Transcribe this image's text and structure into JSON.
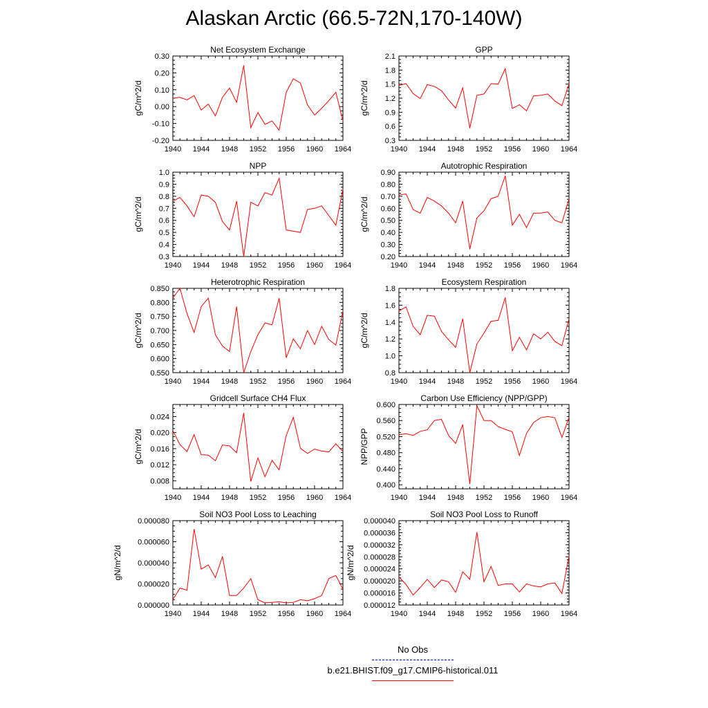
{
  "title": "Alaskan Arctic (66.5-72N,170-140W)",
  "legend": {
    "obs_label": "No Obs",
    "obs_color": "#0000ff",
    "model_label": "b.e21.BHIST.f09_g17.CMIP6-historical.011",
    "model_color": "#ff0000"
  },
  "chart_data": [
    {
      "type": "line",
      "title": "Net Ecosystem Exchange",
      "ylabel": "gC/m^2/d",
      "xlim": [
        1940,
        1964
      ],
      "ylim": [
        -0.2,
        0.3
      ],
      "xticks": [
        "1940",
        "1944",
        "1948",
        "1952",
        "1956",
        "1960",
        "1964"
      ],
      "yticks": [
        "-0.20",
        "-0.10",
        "0.00",
        "0.10",
        "0.20",
        "0.30"
      ],
      "x": [
        1940,
        1941,
        1942,
        1943,
        1944,
        1945,
        1946,
        1947,
        1948,
        1949,
        1950,
        1951,
        1952,
        1953,
        1954,
        1955,
        1956,
        1957,
        1958,
        1959,
        1960,
        1961,
        1962,
        1963,
        1964
      ],
      "series": [
        {
          "values": [
            0.05,
            0.055,
            0.04,
            0.065,
            -0.02,
            0.015,
            -0.055,
            0.055,
            0.11,
            0.025,
            0.245,
            -0.125,
            -0.035,
            -0.105,
            -0.085,
            -0.14,
            0.085,
            0.165,
            0.14,
            0.01,
            -0.05,
            -0.01,
            0.035,
            0.085,
            -0.085
          ]
        }
      ]
    },
    {
      "type": "line",
      "title": "GPP",
      "ylabel": "gC/m^2/d",
      "xlim": [
        1940,
        1964
      ],
      "ylim": [
        0.3,
        2.1
      ],
      "xticks": [
        "1940",
        "1944",
        "1948",
        "1952",
        "1956",
        "1960",
        "1964"
      ],
      "yticks": [
        "0.3",
        "0.6",
        "0.9",
        "1.2",
        "1.5",
        "1.8",
        "2.1"
      ],
      "x": [
        1940,
        1941,
        1942,
        1943,
        1944,
        1945,
        1946,
        1947,
        1948,
        1949,
        1950,
        1951,
        1952,
        1953,
        1954,
        1955,
        1956,
        1957,
        1958,
        1959,
        1960,
        1961,
        1962,
        1963,
        1964
      ],
      "series": [
        {
          "values": [
            1.47,
            1.51,
            1.3,
            1.19,
            1.49,
            1.45,
            1.36,
            1.16,
            0.99,
            1.42,
            0.56,
            1.26,
            1.29,
            1.51,
            1.5,
            1.83,
            0.98,
            1.06,
            0.93,
            1.25,
            1.26,
            1.29,
            1.14,
            1.04,
            1.51
          ]
        }
      ]
    },
    {
      "type": "line",
      "title": "NPP",
      "ylabel": "gC/m^2/d",
      "xlim": [
        1940,
        1964
      ],
      "ylim": [
        0.3,
        1.0
      ],
      "xticks": [
        "1940",
        "1944",
        "1948",
        "1952",
        "1956",
        "1960",
        "1964"
      ],
      "yticks": [
        "0.3",
        "0.4",
        "0.5",
        "0.6",
        "0.7",
        "0.8",
        "0.9",
        "1.0"
      ],
      "x": [
        1940,
        1941,
        1942,
        1943,
        1944,
        1945,
        1946,
        1947,
        1948,
        1949,
        1950,
        1951,
        1952,
        1953,
        1954,
        1955,
        1956,
        1957,
        1958,
        1959,
        1960,
        1961,
        1962,
        1963,
        1964
      ],
      "series": [
        {
          "values": [
            0.76,
            0.79,
            0.72,
            0.63,
            0.81,
            0.8,
            0.75,
            0.59,
            0.52,
            0.76,
            0.3,
            0.75,
            0.72,
            0.83,
            0.81,
            0.95,
            0.52,
            0.51,
            0.5,
            0.69,
            0.7,
            0.72,
            0.64,
            0.56,
            0.86
          ]
        }
      ]
    },
    {
      "type": "line",
      "title": "Autotrophic Respiration",
      "ylabel": "gC/m^2/d",
      "xlim": [
        1940,
        1964
      ],
      "ylim": [
        0.2,
        0.9
      ],
      "xticks": [
        "1940",
        "1944",
        "1948",
        "1952",
        "1956",
        "1960",
        "1964"
      ],
      "yticks": [
        "0.20",
        "0.30",
        "0.40",
        "0.50",
        "0.60",
        "0.70",
        "0.80",
        "0.90"
      ],
      "x": [
        1940,
        1941,
        1942,
        1943,
        1944,
        1945,
        1946,
        1947,
        1948,
        1949,
        1950,
        1951,
        1952,
        1953,
        1954,
        1955,
        1956,
        1957,
        1958,
        1959,
        1960,
        1961,
        1962,
        1963,
        1964
      ],
      "series": [
        {
          "values": [
            0.71,
            0.72,
            0.59,
            0.56,
            0.69,
            0.66,
            0.62,
            0.56,
            0.48,
            0.66,
            0.26,
            0.52,
            0.58,
            0.68,
            0.7,
            0.87,
            0.46,
            0.55,
            0.44,
            0.56,
            0.56,
            0.57,
            0.5,
            0.48,
            0.68
          ]
        }
      ]
    },
    {
      "type": "line",
      "title": "Heterotrophic Respiration",
      "ylabel": "gC/m^2/d",
      "xlim": [
        1940,
        1964
      ],
      "ylim": [
        0.55,
        0.85
      ],
      "xticks": [
        "1940",
        "1944",
        "1948",
        "1952",
        "1956",
        "1960",
        "1964"
      ],
      "yticks": [
        "0.550",
        "0.600",
        "0.650",
        "0.700",
        "0.750",
        "0.800",
        "0.850"
      ],
      "x": [
        1940,
        1941,
        1942,
        1943,
        1944,
        1945,
        1946,
        1947,
        1948,
        1949,
        1950,
        1951,
        1952,
        1953,
        1954,
        1955,
        1956,
        1957,
        1958,
        1959,
        1960,
        1961,
        1962,
        1963,
        1964
      ],
      "series": [
        {
          "values": [
            0.815,
            0.85,
            0.76,
            0.693,
            0.785,
            0.815,
            0.685,
            0.645,
            0.625,
            0.785,
            0.55,
            0.625,
            0.685,
            0.727,
            0.72,
            0.815,
            0.603,
            0.67,
            0.635,
            0.7,
            0.65,
            0.715,
            0.668,
            0.648,
            0.77
          ]
        }
      ]
    },
    {
      "type": "line",
      "title": "Ecosystem Respiration",
      "ylabel": "gC/m^2/d",
      "xlim": [
        1940,
        1964
      ],
      "ylim": [
        0.8,
        1.8
      ],
      "xticks": [
        "1940",
        "1944",
        "1948",
        "1952",
        "1956",
        "1960",
        "1964"
      ],
      "yticks": [
        "0.8",
        "1.0",
        "1.2",
        "1.4",
        "1.6",
        "1.8"
      ],
      "x": [
        1940,
        1941,
        1942,
        1943,
        1944,
        1945,
        1946,
        1947,
        1948,
        1949,
        1950,
        1951,
        1952,
        1953,
        1954,
        1955,
        1956,
        1957,
        1958,
        1959,
        1960,
        1961,
        1962,
        1963,
        1964
      ],
      "series": [
        {
          "values": [
            1.53,
            1.58,
            1.35,
            1.25,
            1.48,
            1.47,
            1.29,
            1.19,
            1.1,
            1.44,
            0.8,
            1.14,
            1.27,
            1.41,
            1.42,
            1.69,
            1.06,
            1.22,
            1.07,
            1.26,
            1.2,
            1.28,
            1.17,
            1.12,
            1.44
          ]
        }
      ]
    },
    {
      "type": "line",
      "title": "Gridcell Surface CH4 Flux",
      "ylabel": "gC/m^2/d",
      "xlim": [
        1940,
        1964
      ],
      "ylim": [
        0.006,
        0.027
      ],
      "xticks": [
        "1940",
        "1944",
        "1948",
        "1952",
        "1956",
        "1960",
        "1964"
      ],
      "yticks": [
        "0.008",
        "0.012",
        "0.016",
        "0.020",
        "0.024"
      ],
      "x": [
        1940,
        1941,
        1942,
        1943,
        1944,
        1945,
        1946,
        1947,
        1948,
        1949,
        1950,
        1951,
        1952,
        1953,
        1954,
        1955,
        1956,
        1957,
        1958,
        1959,
        1960,
        1961,
        1962,
        1963,
        1964
      ],
      "series": [
        {
          "values": [
            0.0205,
            0.017,
            0.0153,
            0.0195,
            0.0145,
            0.0144,
            0.013,
            0.0169,
            0.0167,
            0.015,
            0.0249,
            0.0078,
            0.0137,
            0.009,
            0.0131,
            0.0107,
            0.0193,
            0.0238,
            0.0161,
            0.0148,
            0.0159,
            0.0154,
            0.0152,
            0.0172,
            0.0153
          ]
        }
      ]
    },
    {
      "type": "line",
      "title": "Carbon Use Efficiency (NPP/GPP)",
      "ylabel": "NPP/GPP",
      "xlim": [
        1940,
        1964
      ],
      "ylim": [
        0.39,
        0.6
      ],
      "xticks": [
        "1940",
        "1944",
        "1948",
        "1952",
        "1956",
        "1960",
        "1964"
      ],
      "yticks": [
        "0.400",
        "0.440",
        "0.480",
        "0.520",
        "0.560",
        "0.600"
      ],
      "x": [
        1940,
        1941,
        1942,
        1943,
        1944,
        1945,
        1946,
        1947,
        1948,
        1949,
        1950,
        1951,
        1952,
        1953,
        1954,
        1955,
        1956,
        1957,
        1958,
        1959,
        1960,
        1961,
        1962,
        1963,
        1964
      ],
      "series": [
        {
          "values": [
            0.525,
            0.527,
            0.523,
            0.533,
            0.537,
            0.56,
            0.563,
            0.523,
            0.503,
            0.55,
            0.402,
            0.597,
            0.56,
            0.56,
            0.545,
            0.538,
            0.532,
            0.473,
            0.528,
            0.555,
            0.567,
            0.57,
            0.567,
            0.518,
            0.568
          ]
        }
      ]
    },
    {
      "type": "line",
      "title": "Soil NO3 Pool Loss to Leaching",
      "ylabel": "gN/m^2/d",
      "xlim": [
        1940,
        1964
      ],
      "ylim": [
        0.0,
        8e-05
      ],
      "xticks": [
        "1940",
        "1944",
        "1948",
        "1952",
        "1956",
        "1960",
        "1964"
      ],
      "yticks": [
        "0.000000",
        "0.000020",
        "0.000040",
        "0.000060",
        "0.000080"
      ],
      "x": [
        1940,
        1941,
        1942,
        1943,
        1944,
        1945,
        1946,
        1947,
        1948,
        1949,
        1950,
        1951,
        1952,
        1953,
        1954,
        1955,
        1956,
        1957,
        1958,
        1959,
        1960,
        1961,
        1962,
        1963,
        1964
      ],
      "series": [
        {
          "values": [
            5e-06,
            1.6e-05,
            1.4e-05,
            7.2e-05,
            3.4e-05,
            3.8e-05,
            2.6e-05,
            4.6e-05,
            9e-06,
            9e-06,
            1.6e-05,
            2.5e-05,
            5e-06,
            2e-06,
            2.5e-06,
            3e-06,
            2e-06,
            2.5e-06,
            5e-06,
            4e-06,
            6e-06,
            9e-06,
            2.5e-05,
            2.8e-05,
            1.5e-05
          ]
        }
      ]
    },
    {
      "type": "line",
      "title": "Soil NO3 Pool Loss to Runoff",
      "ylabel": "gN/m^2/d",
      "xlim": [
        1940,
        1964
      ],
      "ylim": [
        1.2e-05,
        4e-05
      ],
      "xticks": [
        "1940",
        "1944",
        "1948",
        "1952",
        "1956",
        "1960",
        "1964"
      ],
      "yticks": [
        "0.000012",
        "0.000016",
        "0.000020",
        "0.000024",
        "0.000028",
        "0.000032",
        "0.000036",
        "0.000040"
      ],
      "x": [
        1940,
        1941,
        1942,
        1943,
        1944,
        1945,
        1946,
        1947,
        1948,
        1949,
        1950,
        1951,
        1952,
        1953,
        1954,
        1955,
        1956,
        1957,
        1958,
        1959,
        1960,
        1961,
        1962,
        1963,
        1964
      ],
      "series": [
        {
          "values": [
            2.13e-05,
            1.88e-05,
            1.53e-05,
            1.78e-05,
            2.05e-05,
            1.78e-05,
            2.03e-05,
            1.97e-05,
            1.62e-05,
            2.3e-05,
            2.05e-05,
            3.62e-05,
            1.97e-05,
            2.48e-05,
            1.85e-05,
            1.9e-05,
            1.9e-05,
            1.63e-05,
            1.9e-05,
            1.83e-05,
            1.8e-05,
            1.9e-05,
            1.93e-05,
            1.58e-05,
            2.83e-05
          ]
        }
      ]
    }
  ]
}
